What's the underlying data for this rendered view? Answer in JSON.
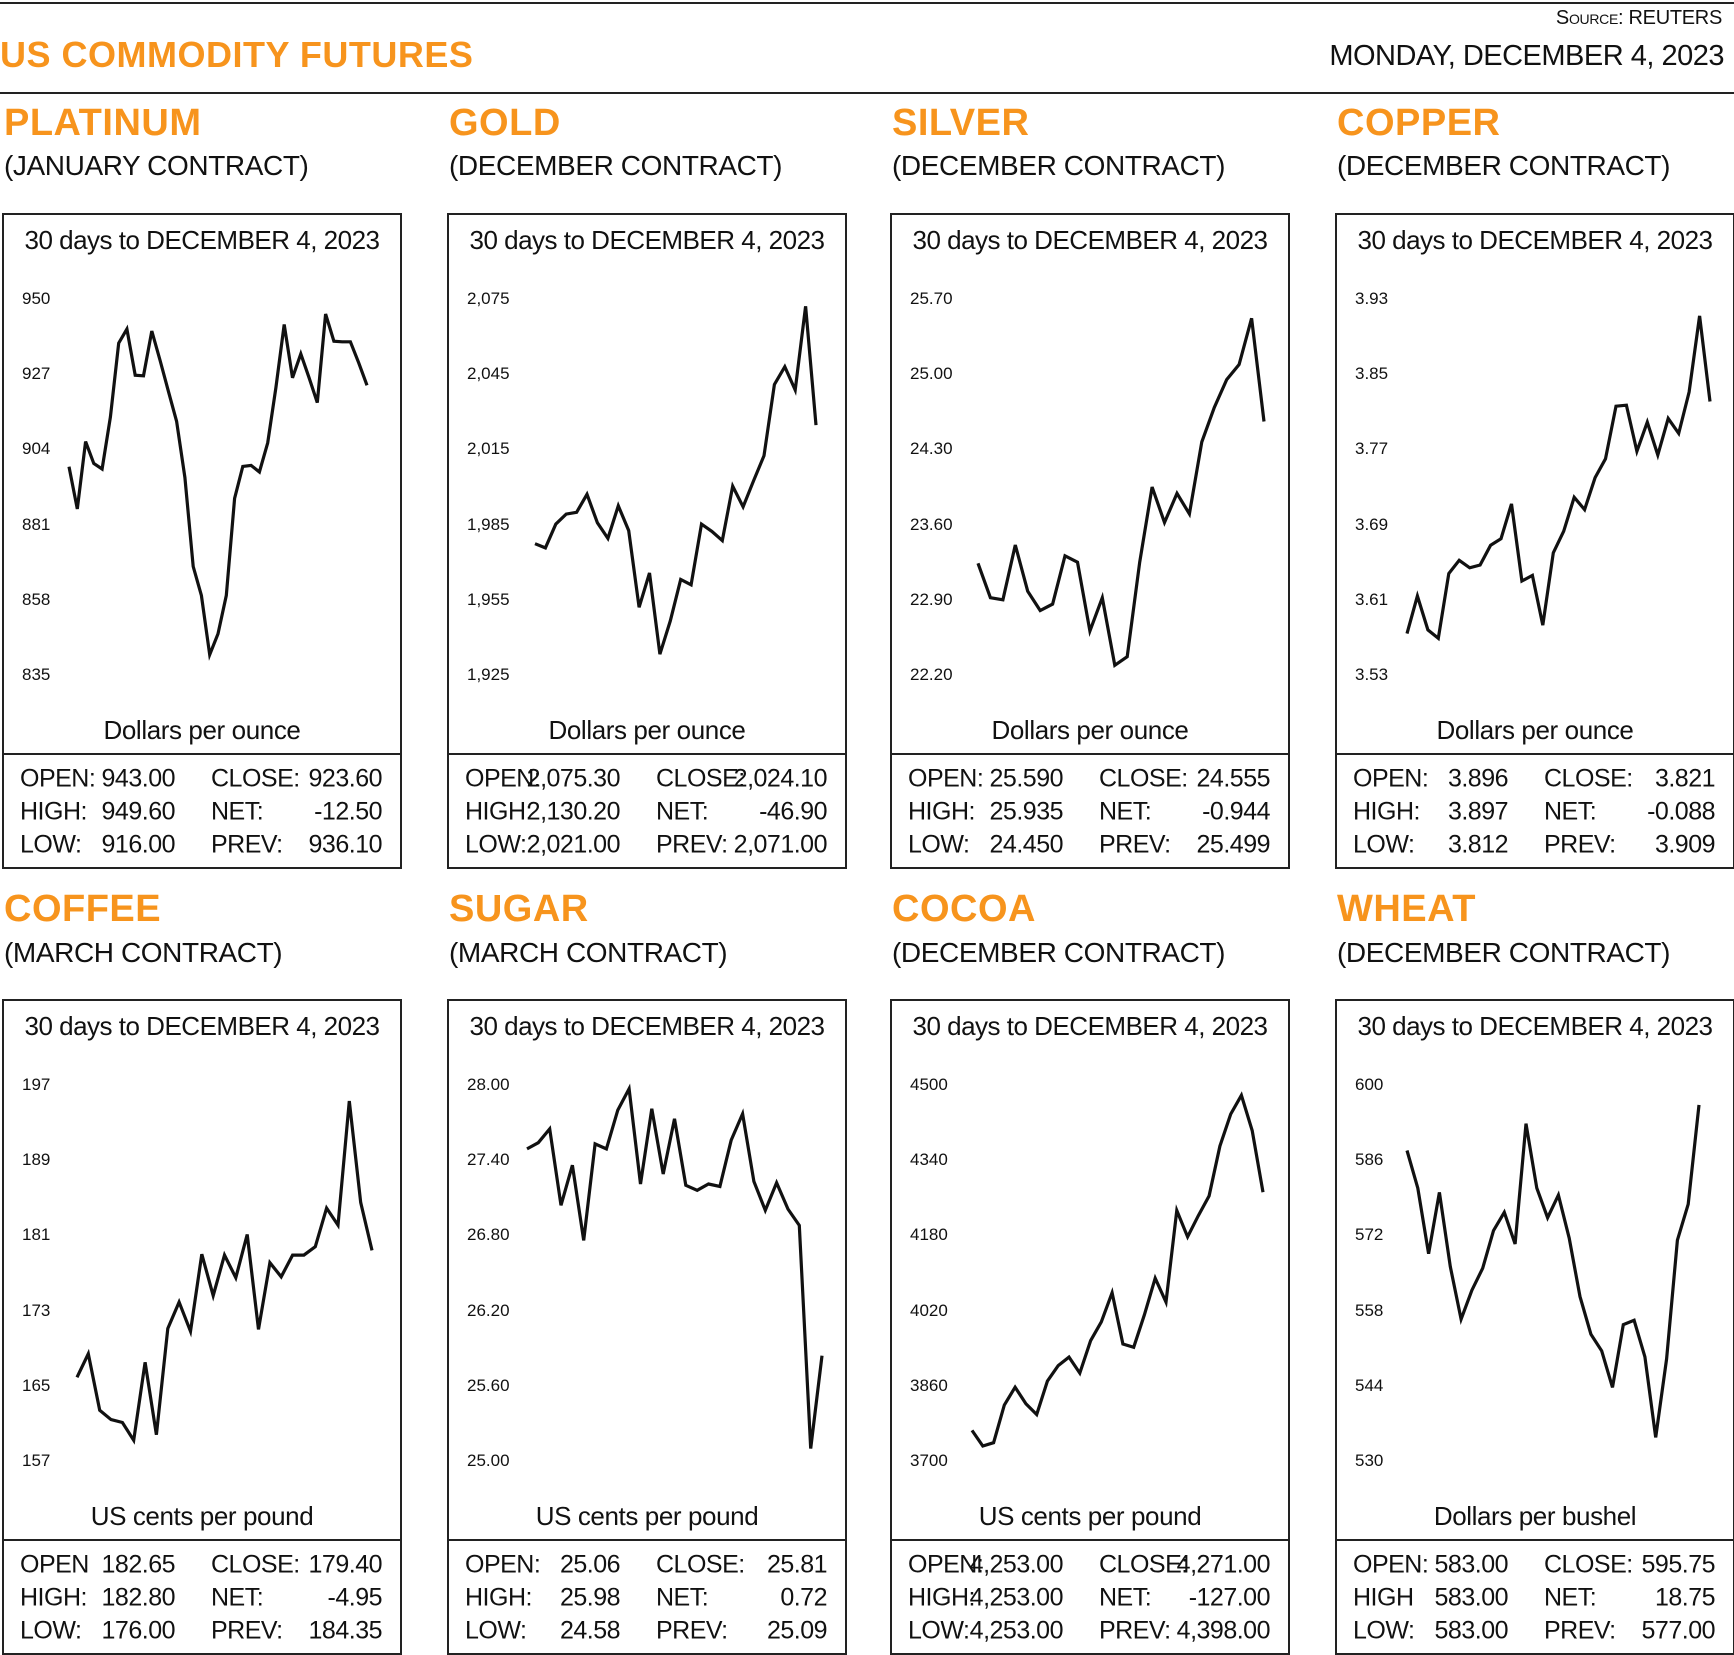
{
  "header": {
    "source": "Source: REUTERS",
    "title": "US COMMODITY FUTURES",
    "date": "MONDAY, DECEMBER 4, 2023"
  },
  "colors": {
    "accent": "#f7941d",
    "line": "#111111"
  },
  "panels": [
    {
      "name": "PLATINUM",
      "contract": "(JANUARY CONTRACT)",
      "stats": {
        "open_label": "OPEN:",
        "open": "943.00",
        "high_label": "HIGH:",
        "high": "949.60",
        "low_label": "LOW:",
        "low": "916.00",
        "close_label": "CLOSE:",
        "close": "923.60",
        "net_label": "NET:",
        "net": "-12.50",
        "prev_label": "PREV:",
        "prev": "936.10"
      }
    },
    {
      "name": "GOLD",
      "contract": "(DECEMBER CONTRACT)",
      "stats": {
        "open_label": "OPEN:",
        "open": "2,075.30",
        "high_label": "HIGH:",
        "high": "2,130.20",
        "low_label": "LOW:",
        "low": "2,021.00",
        "close_label": "CLOSE:",
        "close": "2,024.10",
        "net_label": "NET:",
        "net": "-46.90",
        "prev_label": "PREV:",
        "prev": "2,071.00"
      }
    },
    {
      "name": "SILVER",
      "contract": "(DECEMBER CONTRACT)",
      "stats": {
        "open_label": "OPEN:",
        "open": "25.590",
        "high_label": "HIGH:",
        "high": "25.935",
        "low_label": "LOW:",
        "low": "24.450",
        "close_label": "CLOSE:",
        "close": "24.555",
        "net_label": "NET:",
        "net": "-0.944",
        "prev_label": "PREV:",
        "prev": "25.499"
      }
    },
    {
      "name": "COPPER",
      "contract": "(DECEMBER CONTRACT)",
      "stats": {
        "open_label": "OPEN:",
        "open": "3.896",
        "high_label": "HIGH:",
        "high": "3.897",
        "low_label": "LOW:",
        "low": "3.812",
        "close_label": "CLOSE:",
        "close": "3.821",
        "net_label": "NET:",
        "net": "-0.088",
        "prev_label": "PREV:",
        "prev": "3.909"
      }
    },
    {
      "name": "COFFEE",
      "contract": "(MARCH CONTRACT)",
      "stats": {
        "open_label": "OPEN",
        "open": "182.65",
        "high_label": "HIGH:",
        "high": "182.80",
        "low_label": "LOW:",
        "low": "176.00",
        "close_label": "CLOSE:",
        "close": "179.40",
        "net_label": "NET:",
        "net": "-4.95",
        "prev_label": "PREV:",
        "prev": "184.35"
      }
    },
    {
      "name": "SUGAR",
      "contract": "(MARCH CONTRACT)",
      "stats": {
        "open_label": "OPEN:",
        "open": "25.06",
        "high_label": "HIGH:",
        "high": "25.98",
        "low_label": "LOW:",
        "low": "24.58",
        "close_label": "CLOSE:",
        "close": "25.81",
        "net_label": "NET:",
        "net": "0.72",
        "prev_label": "PREV:",
        "prev": "25.09"
      }
    },
    {
      "name": "COCOA",
      "contract": "(DECEMBER CONTRACT)",
      "stats": {
        "open_label": "OPEN:",
        "open": "4,253.00",
        "high_label": "HIGH:",
        "high": "4,253.00",
        "low_label": "LOW:",
        "low": "4,253.00",
        "close_label": "CLOSE:",
        "close": "4,271.00",
        "net_label": "NET:",
        "net": "-127.00",
        "prev_label": "PREV:",
        "prev": "4,398.00"
      }
    },
    {
      "name": "WHEAT",
      "contract": "(DECEMBER CONTRACT)",
      "stats": {
        "open_label": "OPEN:",
        "open": "583.00",
        "high_label": "HIGH",
        "high": "583.00",
        "low_label": "LOW:",
        "low": "583.00",
        "close_label": "CLOSE:",
        "close": "595.75",
        "net_label": "NET:",
        "net": "18.75",
        "prev_label": "PREV:",
        "prev": "577.00"
      }
    }
  ],
  "chart_data": [
    {
      "type": "line",
      "title": "30 days to DECEMBER 4, 2023",
      "ylabel": "Dollars per ounce",
      "yticks": [
        "950",
        "927",
        "904",
        "881",
        "858",
        "835"
      ],
      "ylim": [
        835,
        950
      ],
      "grid": false,
      "values": [
        898.7,
        885.8,
        906.4,
        899.7,
        898.0,
        913.9,
        936.5,
        940.8,
        926.7,
        926.5,
        940.2,
        931.2,
        921.9,
        912.6,
        895.4,
        868.2,
        859.3,
        841.2,
        847.6,
        859.3,
        889.0,
        898.8,
        899.1,
        897.1,
        906.0,
        922.9,
        942.2,
        925.9,
        933.2,
        925.9,
        918.3,
        945.4,
        937.1,
        936.9,
        936.9,
        930.5,
        923.6
      ]
    },
    {
      "type": "line",
      "title": "30 days to DECEMBER 4, 2023",
      "ylabel": "Dollars per ounce",
      "yticks": [
        "2,075",
        "2,045",
        "2,015",
        "1,985",
        "1,955",
        "1,925"
      ],
      "ylim": [
        1925,
        2075
      ],
      "grid": false,
      "values": [
        1977.4,
        1975.7,
        1985.2,
        1989.2,
        1989.9,
        1997.1,
        1985.7,
        1979.5,
        1992.5,
        1982.6,
        1952.0,
        1965.7,
        1933.3,
        1946.6,
        1963.1,
        1961.0,
        1985.2,
        1982.3,
        1978.6,
        2000.3,
        1992.1,
        2002.5,
        2012.5,
        2040.9,
        2048.0,
        2038.7,
        2072.1,
        2024.7
      ]
    },
    {
      "type": "line",
      "title": "30 days to DECEMBER 4, 2023",
      "ylabel": "Dollars per ounce",
      "yticks": [
        "25.70",
        "25.00",
        "24.30",
        "23.60",
        "22.90",
        "22.20"
      ],
      "ylim": [
        22.2,
        25.7
      ],
      "grid": false,
      "values": [
        23.24,
        22.92,
        22.9,
        23.41,
        22.98,
        22.8,
        22.86,
        23.31,
        23.25,
        22.61,
        22.92,
        22.29,
        22.37,
        23.25,
        23.95,
        23.62,
        23.89,
        23.7,
        24.37,
        24.69,
        24.95,
        25.09,
        25.52,
        24.56
      ]
    },
    {
      "type": "line",
      "title": "30 days to DECEMBER 4, 2023",
      "ylabel": "Dollars per ounce",
      "yticks": [
        "3.93",
        "3.85",
        "3.77",
        "3.69",
        "3.61",
        "3.53"
      ],
      "ylim": [
        3.53,
        3.93
      ],
      "grid": false,
      "values": [
        3.574,
        3.614,
        3.578,
        3.569,
        3.638,
        3.652,
        3.644,
        3.647,
        3.668,
        3.675,
        3.712,
        3.63,
        3.636,
        3.583,
        3.66,
        3.683,
        3.719,
        3.706,
        3.74,
        3.76,
        3.816,
        3.817,
        3.768,
        3.799,
        3.764,
        3.803,
        3.787,
        3.831,
        3.912,
        3.821
      ]
    },
    {
      "type": "line",
      "title": "30 days to DECEMBER 4, 2023",
      "ylabel": "US cents per pound",
      "yticks": [
        "197",
        "189",
        "181",
        "173",
        "165",
        "157"
      ],
      "ylim": [
        157,
        197
      ],
      "grid": false,
      "values": [
        165.9,
        168.4,
        162.4,
        161.4,
        161.1,
        159.2,
        167.5,
        159.8,
        171.1,
        173.9,
        170.8,
        179.0,
        174.6,
        178.9,
        176.5,
        181.1,
        171.0,
        178.1,
        176.6,
        178.9,
        178.9,
        179.8,
        183.9,
        182.1,
        195.3,
        184.5,
        179.4
      ]
    },
    {
      "type": "line",
      "title": "30 days to DECEMBER 4, 2023",
      "ylabel": "US cents per pound",
      "yticks": [
        "28.00",
        "27.40",
        "26.80",
        "26.20",
        "25.60",
        "25.00"
      ],
      "ylim": [
        25.0,
        28.0
      ],
      "grid": false,
      "values": [
        27.49,
        27.54,
        27.65,
        27.04,
        27.36,
        26.76,
        27.53,
        27.49,
        27.8,
        27.97,
        27.21,
        27.81,
        27.29,
        27.73,
        27.2,
        27.16,
        27.21,
        27.19,
        27.56,
        27.77,
        27.23,
        27.0,
        27.22,
        27.01,
        26.88,
        25.1,
        25.84
      ]
    },
    {
      "type": "line",
      "title": "30 days to DECEMBER 4, 2023",
      "ylabel": "US cents per pound",
      "yticks": [
        "4500",
        "4340",
        "4180",
        "4020",
        "3860",
        "3700"
      ],
      "ylim": [
        3700,
        4500
      ],
      "grid": false,
      "values": [
        3765,
        3732,
        3739,
        3819,
        3857,
        3822,
        3799,
        3870,
        3903,
        3921,
        3887,
        3956,
        3996,
        4058,
        3949,
        3942,
        4011,
        4089,
        4038,
        4233,
        4177,
        4222,
        4264,
        4370,
        4438,
        4478,
        4403,
        4272
      ]
    },
    {
      "type": "line",
      "title": "30 days to DECEMBER 4, 2023",
      "ylabel": "Dollars per bushel",
      "yticks": [
        "600",
        "586",
        "572",
        "558",
        "544",
        "530"
      ],
      "ylim": [
        530,
        600
      ],
      "grid": false,
      "values": [
        587.8,
        580.8,
        568.6,
        580.0,
        566.2,
        556.4,
        561.8,
        565.9,
        572.9,
        576.3,
        570.4,
        592.8,
        580.8,
        575.3,
        579.5,
        571.5,
        560.6,
        553.6,
        550.5,
        543.7,
        555.4,
        556.2,
        549.4,
        534.4,
        549.0,
        571.1,
        577.8,
        596.3
      ]
    }
  ]
}
